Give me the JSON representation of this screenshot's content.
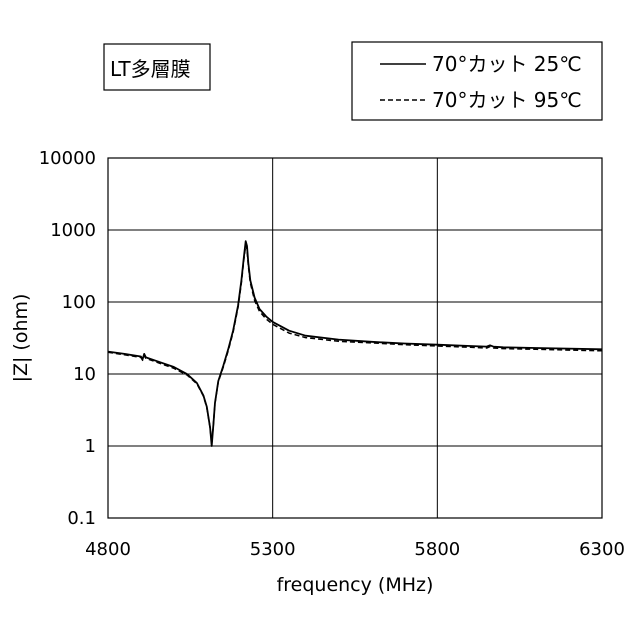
{
  "chart_data": {
    "type": "line",
    "title": "LT多層膜",
    "xlabel": "frequency (MHz)",
    "ylabel": "|Z| (ohm)",
    "xlim": [
      4800,
      6300
    ],
    "ylim": [
      0.1,
      10000
    ],
    "y_scale": "log",
    "x_ticks": [
      4800,
      5300,
      5800,
      6300
    ],
    "y_ticks": [
      0.1,
      1,
      10,
      100,
      1000,
      10000
    ],
    "grid": true,
    "legend_position": "top-right",
    "series": [
      {
        "name": "70°カット 25℃",
        "style": "solid",
        "x": [
          4800,
          4850,
          4900,
          4905,
          4910,
          4915,
          4950,
          5000,
          5040,
          5070,
          5090,
          5100,
          5110,
          5115,
          5120,
          5125,
          5135,
          5150,
          5165,
          5180,
          5195,
          5205,
          5212,
          5218,
          5222,
          5226,
          5232,
          5245,
          5260,
          5280,
          5300,
          5350,
          5400,
          5500,
          5600,
          5700,
          5800,
          5900,
          5950,
          5960,
          5970,
          6000,
          6100,
          6200,
          6300
        ],
        "y": [
          20.5,
          19,
          17.5,
          16,
          19,
          17,
          15,
          12.5,
          10,
          7.5,
          5,
          3.5,
          1.8,
          1.0,
          2.0,
          4.0,
          8.0,
          13,
          22,
          40,
          90,
          200,
          400,
          700,
          600,
          350,
          200,
          115,
          80,
          63,
          53,
          40,
          34,
          30,
          28,
          26.5,
          25.5,
          24.5,
          24,
          25,
          24,
          23.5,
          23,
          22.5,
          22
        ]
      },
      {
        "name": "70°カット 95℃",
        "style": "dashed",
        "x": [
          4800,
          4850,
          4900,
          4905,
          4910,
          4915,
          4950,
          5000,
          5040,
          5070,
          5090,
          5100,
          5110,
          5115,
          5120,
          5125,
          5135,
          5150,
          5165,
          5180,
          5195,
          5205,
          5212,
          5218,
          5222,
          5226,
          5232,
          5245,
          5260,
          5280,
          5300,
          5350,
          5400,
          5500,
          5600,
          5700,
          5800,
          5900,
          5950,
          5960,
          5970,
          6000,
          6100,
          6200,
          6300
        ],
        "y": [
          20,
          18.5,
          17,
          15.5,
          18,
          16.5,
          14.5,
          12,
          9.7,
          7.3,
          4.9,
          3.4,
          1.8,
          1.05,
          2.0,
          3.9,
          7.8,
          12.5,
          21,
          38,
          85,
          185,
          370,
          620,
          540,
          320,
          185,
          105,
          74,
          58,
          49,
          37,
          32,
          28.5,
          27,
          25.5,
          24.5,
          23.5,
          23,
          24,
          23,
          22.5,
          22,
          21.5,
          21
        ]
      }
    ]
  }
}
